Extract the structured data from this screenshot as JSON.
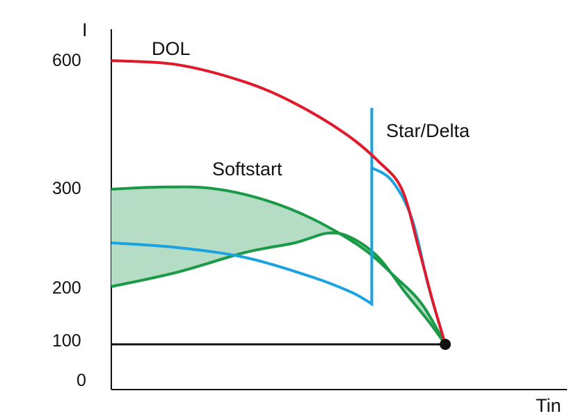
{
  "chart_data": {
    "type": "line",
    "title": "",
    "ylabel": "I",
    "xlabel": "Tin",
    "grid": false,
    "legend": "none",
    "y_ticks": [
      {
        "label": "600"
      },
      {
        "label": "300"
      },
      {
        "label": "200"
      },
      {
        "label": "100"
      },
      {
        "label": "0"
      }
    ],
    "series": [
      {
        "name": "DOL",
        "color": "#e0192b",
        "x": [
          0,
          0.2,
          0.4,
          0.55,
          0.7,
          0.8,
          0.87,
          0.92,
          0.96,
          0.99,
          1.0
        ],
        "y": [
          600,
          590,
          550,
          500,
          430,
          365,
          300,
          240,
          180,
          120,
          100
        ]
      },
      {
        "name": "Star/Delta",
        "color": "#1aa3e0",
        "x": [
          0,
          0.2,
          0.4,
          0.6,
          0.72,
          0.78,
          0.78,
          0.78,
          0.84,
          0.9,
          0.95,
          1.0
        ],
        "y": [
          245,
          240,
          230,
          210,
          190,
          170,
          490,
          350,
          320,
          270,
          200,
          100
        ]
      },
      {
        "name": "Softstart",
        "color": "#1a9a47",
        "fill": "#b5dcc4",
        "upper_x": [
          0,
          0.15,
          0.3,
          0.45,
          0.6,
          0.75,
          0.85,
          0.93,
          1.0
        ],
        "upper_y": [
          300,
          305,
          302,
          290,
          270,
          240,
          210,
          170,
          100
        ],
        "lower_x": [
          0,
          0.2,
          0.4,
          0.55,
          0.65,
          0.72,
          0.8,
          0.88,
          0.95,
          1.0
        ],
        "lower_y": [
          200,
          215,
          235,
          245,
          255,
          250,
          230,
          190,
          140,
          100
        ]
      },
      {
        "name": "",
        "color": "#111111",
        "x": [
          0,
          1.0
        ],
        "y": [
          100,
          100
        ]
      }
    ],
    "xlim": [
      0,
      1.0
    ],
    "ylim": [
      0,
      650
    ]
  },
  "labels": {
    "dol": "DOL",
    "star_delta": "Star/Delta",
    "softstart": "Softstart"
  }
}
